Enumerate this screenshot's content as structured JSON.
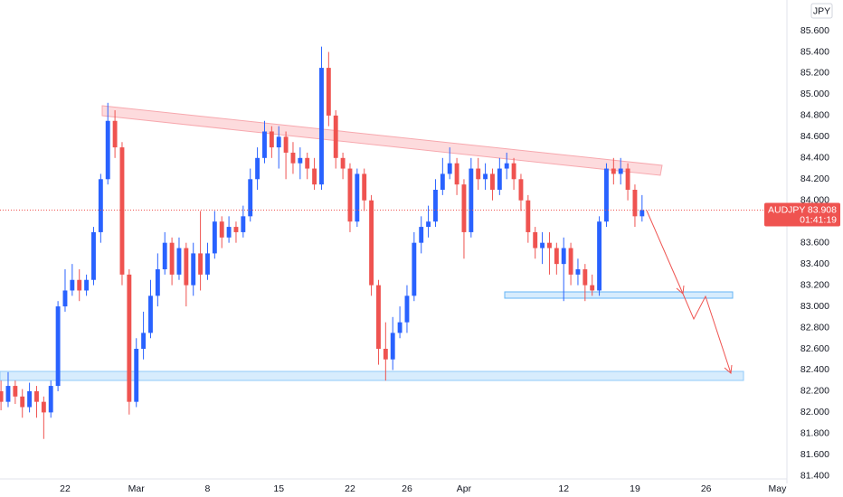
{
  "chart_data": {
    "type": "candlestick",
    "symbol": "AUDJPY",
    "currency": "JPY",
    "countdown": "01:41:19",
    "up_color": "#2962ff",
    "down_color": "#ef5350",
    "grid": false,
    "xlim": [
      -4.57,
      50.67
    ],
    "ylim": [
      81.33,
      85.89
    ],
    "xticks": [
      {
        "value": 0,
        "label": "22"
      },
      {
        "value": 5,
        "label": "Mar"
      },
      {
        "value": 10,
        "label": "8"
      },
      {
        "value": 15,
        "label": "15"
      },
      {
        "value": 20,
        "label": "22"
      },
      {
        "value": 24,
        "label": "26"
      },
      {
        "value": 28,
        "label": "Apr"
      },
      {
        "value": 35,
        "label": "12"
      },
      {
        "value": 40,
        "label": "19"
      },
      {
        "value": 45,
        "label": "26"
      },
      {
        "value": 50,
        "label": "May"
      }
    ],
    "yticks": [
      {
        "value": 81.4,
        "label": "81.400"
      },
      {
        "value": 81.6,
        "label": "81.600"
      },
      {
        "value": 81.8,
        "label": "81.800"
      },
      {
        "value": 82.0,
        "label": "82.000"
      },
      {
        "value": 82.2,
        "label": "82.200"
      },
      {
        "value": 82.4,
        "label": "82.400"
      },
      {
        "value": 82.6,
        "label": "82.600"
      },
      {
        "value": 82.8,
        "label": "82.800"
      },
      {
        "value": 83.0,
        "label": "83.000"
      },
      {
        "value": 83.2,
        "label": "83.200"
      },
      {
        "value": 83.4,
        "label": "83.400"
      },
      {
        "value": 83.6,
        "label": "83.600"
      },
      {
        "value": 83.8,
        "label": "83.800"
      },
      {
        "value": 84.0,
        "label": "84.000"
      },
      {
        "value": 84.2,
        "label": "84.200"
      },
      {
        "value": 84.4,
        "label": "84.400"
      },
      {
        "value": 84.6,
        "label": "84.600"
      },
      {
        "value": 84.8,
        "label": "84.800"
      },
      {
        "value": 85.0,
        "label": "85.000"
      },
      {
        "value": 85.2,
        "label": "85.200"
      },
      {
        "value": 85.4,
        "label": "85.400"
      },
      {
        "value": 85.6,
        "label": "85.600"
      }
    ],
    "x": [
      -4.5,
      -4,
      -3.5,
      -3,
      -2.5,
      -2,
      -1.5,
      -1,
      -0.5,
      0,
      0.5,
      1,
      1.5,
      2,
      2.5,
      3,
      3.5,
      4,
      4.5,
      5,
      5.5,
      6,
      6.5,
      7,
      7.5,
      8,
      8.5,
      9,
      9.5,
      10,
      10.5,
      11,
      11.5,
      12,
      12.5,
      13,
      13.5,
      14,
      14.5,
      15,
      15.5,
      16,
      16.5,
      17,
      17.5,
      18,
      18.5,
      19,
      19.5,
      20,
      20.5,
      21,
      21.5,
      22,
      22.5,
      23,
      23.5,
      24,
      24.5,
      25,
      25.5,
      26,
      26.5,
      27,
      27.5,
      28,
      28.5,
      29,
      29.5,
      30,
      30.5,
      31,
      31.5,
      32,
      32.5,
      33,
      33.5,
      34,
      34.5,
      35,
      35.5,
      36,
      36.5,
      37,
      37.5,
      38,
      38.5,
      39,
      39.5,
      40,
      40.5
    ],
    "open": [
      82.2,
      82.1,
      82.25,
      82.15,
      82.05,
      82.2,
      82.1,
      82.0,
      82.25,
      83.0,
      83.15,
      83.25,
      83.15,
      83.25,
      83.7,
      84.2,
      84.75,
      84.5,
      83.3,
      82.1,
      82.6,
      82.75,
      83.1,
      83.35,
      83.6,
      83.3,
      83.55,
      83.2,
      83.5,
      83.3,
      83.5,
      83.8,
      83.65,
      83.75,
      83.7,
      83.85,
      84.2,
      84.4,
      84.65,
      84.5,
      84.6,
      84.45,
      84.35,
      84.4,
      84.3,
      84.15,
      85.25,
      84.8,
      84.4,
      84.3,
      83.8,
      84.25,
      84.0,
      83.2,
      82.6,
      82.5,
      82.75,
      82.85,
      83.1,
      83.6,
      83.75,
      83.8,
      84.1,
      84.25,
      84.35,
      84.15,
      83.7,
      84.3,
      84.2,
      84.25,
      84.1,
      84.3,
      84.35,
      84.2,
      84.0,
      83.7,
      83.55,
      83.6,
      83.55,
      83.4,
      83.55,
      83.3,
      83.35,
      83.2,
      83.15,
      83.8,
      84.3,
      84.25,
      84.3,
      84.1,
      83.85
    ],
    "high": [
      82.3,
      82.38,
      82.3,
      82.22,
      82.28,
      82.25,
      82.15,
      82.3,
      83.05,
      83.35,
      83.4,
      83.35,
      83.3,
      83.75,
      84.25,
      84.92,
      84.85,
      84.55,
      83.35,
      82.7,
      82.95,
      83.25,
      83.5,
      83.7,
      83.65,
      83.65,
      83.6,
      83.6,
      83.9,
      83.6,
      83.9,
      83.85,
      83.85,
      83.8,
      83.95,
      84.3,
      84.5,
      84.75,
      84.7,
      84.7,
      84.65,
      84.55,
      84.5,
      84.45,
      84.4,
      85.45,
      85.4,
      84.85,
      84.45,
      84.35,
      84.3,
      84.3,
      84.05,
      83.25,
      82.85,
      82.9,
      83.0,
      83.2,
      83.7,
      83.85,
      83.95,
      84.2,
      84.4,
      84.5,
      84.4,
      84.2,
      84.4,
      84.4,
      84.35,
      84.3,
      84.4,
      84.45,
      84.4,
      84.25,
      84.05,
      83.75,
      83.7,
      83.7,
      83.6,
      83.65,
      83.6,
      83.45,
      83.4,
      83.3,
      83.85,
      84.35,
      84.4,
      84.4,
      84.35,
      84.15,
      84.05
    ],
    "low": [
      82.02,
      82.05,
      82.08,
      81.95,
      82.0,
      81.95,
      81.75,
      81.95,
      82.2,
      82.95,
      83.1,
      83.05,
      83.1,
      83.2,
      83.6,
      84.15,
      84.4,
      83.2,
      81.98,
      82.05,
      82.5,
      82.7,
      83.0,
      83.3,
      83.2,
      83.25,
      83.0,
      83.1,
      83.15,
      83.25,
      83.45,
      83.55,
      83.6,
      83.6,
      83.65,
      83.8,
      84.1,
      84.35,
      84.4,
      84.3,
      84.2,
      84.25,
      84.2,
      84.2,
      84.1,
      84.1,
      84.7,
      84.3,
      84.2,
      83.7,
      83.75,
      83.9,
      83.1,
      82.45,
      82.3,
      82.4,
      82.7,
      82.75,
      83.05,
      83.5,
      83.65,
      83.75,
      84.05,
      84.2,
      84.05,
      83.45,
      83.65,
      84.1,
      84.1,
      84.0,
      84.05,
      84.2,
      84.1,
      83.9,
      83.6,
      83.45,
      83.4,
      83.3,
      83.3,
      83.05,
      83.2,
      83.2,
      83.05,
      83.1,
      83.1,
      83.75,
      84.15,
      84.15,
      84.0,
      83.75,
      83.8
    ],
    "close": [
      82.1,
      82.25,
      82.15,
      82.05,
      82.2,
      82.1,
      82.0,
      82.25,
      83.0,
      83.15,
      83.25,
      83.15,
      83.25,
      83.7,
      84.2,
      84.75,
      84.5,
      83.3,
      82.1,
      82.6,
      82.75,
      83.1,
      83.35,
      83.6,
      83.3,
      83.55,
      83.2,
      83.5,
      83.3,
      83.5,
      83.8,
      83.65,
      83.75,
      83.7,
      83.85,
      84.2,
      84.4,
      84.65,
      84.5,
      84.6,
      84.45,
      84.35,
      84.4,
      84.3,
      84.15,
      85.25,
      84.8,
      84.4,
      84.3,
      83.8,
      84.25,
      84.0,
      83.2,
      82.6,
      82.5,
      82.75,
      82.85,
      83.1,
      83.6,
      83.75,
      83.8,
      84.1,
      84.25,
      84.35,
      84.15,
      83.7,
      84.3,
      84.2,
      84.25,
      84.1,
      84.3,
      84.35,
      84.2,
      84.0,
      83.7,
      83.55,
      83.6,
      83.55,
      83.4,
      83.55,
      83.3,
      83.35,
      83.2,
      83.15,
      83.8,
      84.3,
      84.25,
      84.3,
      84.1,
      83.85,
      83.908
    ]
  }
}
